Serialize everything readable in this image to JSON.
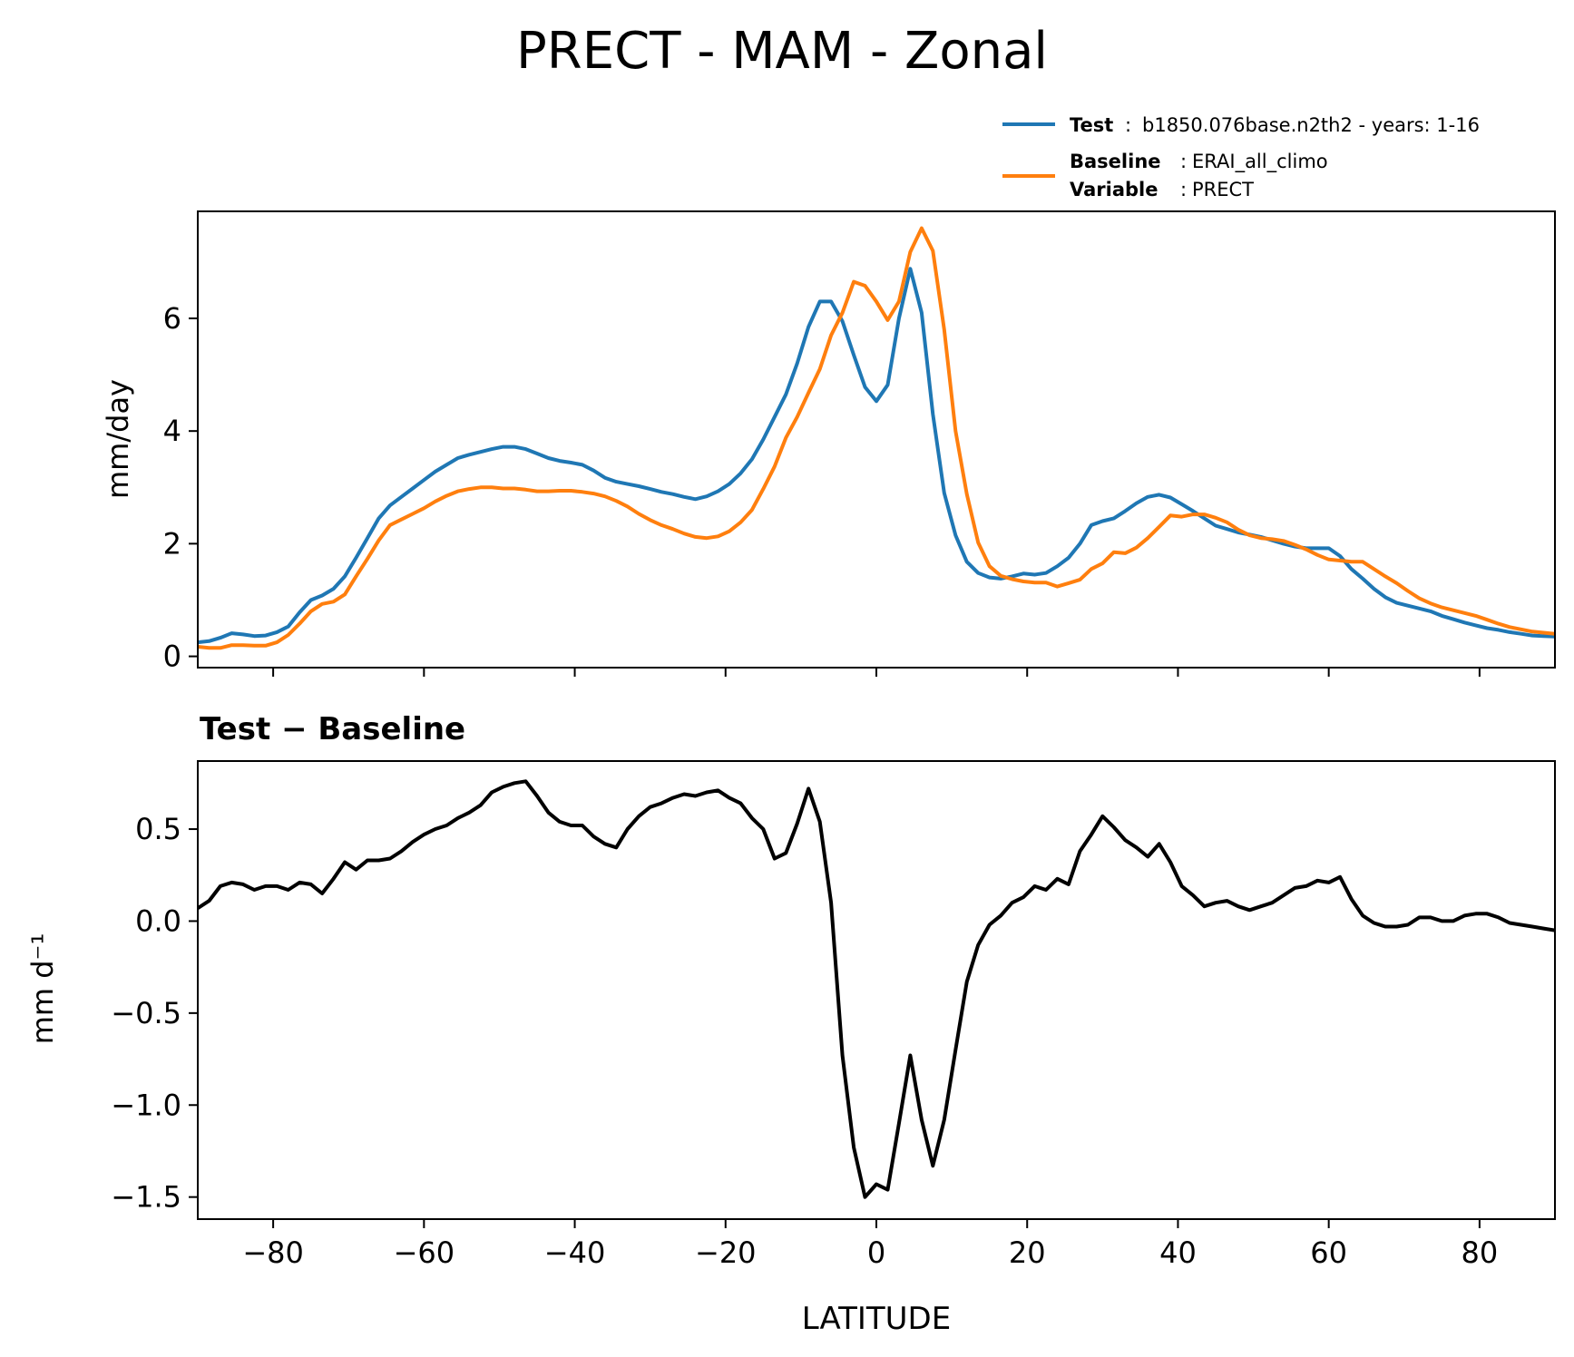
{
  "figure": {
    "title": "PRECT - MAM - Zonal",
    "legend": {
      "test_key": "Test",
      "test_value": "b1850.076base.n2th2 - years: 1-16",
      "baseline_key": "Baseline",
      "baseline_value": "ERAI_all_climo",
      "variable_key": "Variable",
      "variable_value": "PRECT"
    },
    "xlabel": "LATITUDE"
  },
  "colors": {
    "test": "#1f77b4",
    "baseline": "#ff7f0e",
    "diff": "#000000"
  },
  "chart_data": [
    {
      "type": "line",
      "title": "",
      "xlabel": "",
      "ylabel": "mm/day",
      "xlim": [
        -90,
        90
      ],
      "ylim": [
        -0.2,
        7.9
      ],
      "xticks": [
        -80,
        -60,
        -40,
        -20,
        0,
        20,
        40,
        60,
        80
      ],
      "yticks": [
        0,
        2,
        4,
        6
      ],
      "ytick_labels": [
        "0",
        "2",
        "4",
        "6"
      ],
      "legend_placement": "above, top-right",
      "series": [
        {
          "name": "Test: b1850.076base.n2th2 - years: 1-16",
          "color": "#1f77b4",
          "x": [
            -90,
            -88.5,
            -87,
            -85.5,
            -84,
            -82.5,
            -81,
            -79.5,
            -78,
            -76.5,
            -75,
            -73.5,
            -72,
            -70.5,
            -69,
            -67.5,
            -66,
            -64.5,
            -63,
            -61.5,
            -60,
            -58.5,
            -57,
            -55.5,
            -54,
            -52.5,
            -51,
            -49.5,
            -48,
            -46.5,
            -45,
            -43.5,
            -42,
            -40.5,
            -39,
            -37.5,
            -36,
            -34.5,
            -33,
            -31.5,
            -30,
            -28.5,
            -27,
            -25.5,
            -24,
            -22.5,
            -21,
            -19.5,
            -18,
            -16.5,
            -15,
            -13.5,
            -12,
            -10.5,
            -9,
            -7.5,
            -6,
            -4.5,
            -3,
            -1.5,
            0,
            1.5,
            3,
            4.5,
            6,
            7.5,
            9,
            10.5,
            12,
            13.5,
            15,
            16.5,
            18,
            19.5,
            21,
            22.5,
            24,
            25.5,
            27,
            28.5,
            30,
            31.5,
            33,
            34.5,
            36,
            37.5,
            39,
            40.5,
            42,
            43.5,
            45,
            46.5,
            48,
            49.5,
            51,
            52.5,
            54,
            55.5,
            57,
            58.5,
            60,
            61.5,
            63,
            64.5,
            66,
            67.5,
            69,
            70.5,
            72,
            73.5,
            75,
            76.5,
            78,
            79.5,
            81,
            82.5,
            84,
            85.5,
            87,
            88.5,
            90
          ],
          "y": [
            0.25,
            0.27,
            0.33,
            0.41,
            0.39,
            0.36,
            0.37,
            0.43,
            0.53,
            0.78,
            1.0,
            1.08,
            1.2,
            1.42,
            1.75,
            2.1,
            2.45,
            2.68,
            2.83,
            2.98,
            3.13,
            3.28,
            3.4,
            3.52,
            3.58,
            3.63,
            3.68,
            3.72,
            3.72,
            3.68,
            3.6,
            3.52,
            3.47,
            3.44,
            3.4,
            3.3,
            3.17,
            3.1,
            3.06,
            3.02,
            2.97,
            2.92,
            2.88,
            2.83,
            2.79,
            2.84,
            2.93,
            3.06,
            3.25,
            3.5,
            3.85,
            4.25,
            4.65,
            5.2,
            5.85,
            6.3,
            6.3,
            5.95,
            5.35,
            4.78,
            4.53,
            4.82,
            6.0,
            6.88,
            6.1,
            4.3,
            2.9,
            2.15,
            1.68,
            1.48,
            1.4,
            1.38,
            1.42,
            1.47,
            1.45,
            1.48,
            1.6,
            1.75,
            2.0,
            2.33,
            2.4,
            2.45,
            2.58,
            2.72,
            2.83,
            2.87,
            2.82,
            2.7,
            2.58,
            2.45,
            2.32,
            2.26,
            2.2,
            2.16,
            2.12,
            2.06,
            2.0,
            1.95,
            1.92,
            1.92,
            1.92,
            1.78,
            1.55,
            1.38,
            1.2,
            1.05,
            0.95,
            0.9,
            0.85,
            0.8,
            0.72,
            0.66,
            0.6,
            0.55,
            0.5,
            0.47,
            0.43,
            0.4,
            0.37,
            0.36,
            0.35
          ]
        },
        {
          "name": "Baseline: ERAI_all_climo",
          "color": "#ff7f0e",
          "x": [
            -90,
            -88.5,
            -87,
            -85.5,
            -84,
            -82.5,
            -81,
            -79.5,
            -78,
            -76.5,
            -75,
            -73.5,
            -72,
            -70.5,
            -69,
            -67.5,
            -66,
            -64.5,
            -63,
            -61.5,
            -60,
            -58.5,
            -57,
            -55.5,
            -54,
            -52.5,
            -51,
            -49.5,
            -48,
            -46.5,
            -45,
            -43.5,
            -42,
            -40.5,
            -39,
            -37.5,
            -36,
            -34.5,
            -33,
            -31.5,
            -30,
            -28.5,
            -27,
            -25.5,
            -24,
            -22.5,
            -21,
            -19.5,
            -18,
            -16.5,
            -15,
            -13.5,
            -12,
            -10.5,
            -9,
            -7.5,
            -6,
            -4.5,
            -3,
            -1.5,
            0,
            1.5,
            3,
            4.5,
            6,
            7.5,
            9,
            10.5,
            12,
            13.5,
            15,
            16.5,
            18,
            19.5,
            21,
            22.5,
            24,
            25.5,
            27,
            28.5,
            30,
            31.5,
            33,
            34.5,
            36,
            37.5,
            39,
            40.5,
            42,
            43.5,
            45,
            46.5,
            48,
            49.5,
            51,
            52.5,
            54,
            55.5,
            57,
            58.5,
            60,
            61.5,
            63,
            64.5,
            66,
            67.5,
            69,
            70.5,
            72,
            73.5,
            75,
            76.5,
            78,
            79.5,
            81,
            82.5,
            84,
            85.5,
            87,
            88.5,
            90
          ],
          "y": [
            0.17,
            0.15,
            0.15,
            0.2,
            0.2,
            0.19,
            0.19,
            0.25,
            0.38,
            0.58,
            0.8,
            0.93,
            0.97,
            1.1,
            1.42,
            1.73,
            2.06,
            2.33,
            2.43,
            2.53,
            2.63,
            2.75,
            2.85,
            2.93,
            2.97,
            3.0,
            3.0,
            2.98,
            2.98,
            2.96,
            2.93,
            2.93,
            2.94,
            2.94,
            2.92,
            2.89,
            2.84,
            2.76,
            2.66,
            2.53,
            2.42,
            2.33,
            2.26,
            2.18,
            2.12,
            2.1,
            2.13,
            2.22,
            2.38,
            2.6,
            2.97,
            3.37,
            3.88,
            4.25,
            4.68,
            5.1,
            5.7,
            6.1,
            6.65,
            6.58,
            6.3,
            5.97,
            6.3,
            7.18,
            7.6,
            7.2,
            5.8,
            4.0,
            2.88,
            2.02,
            1.6,
            1.43,
            1.37,
            1.33,
            1.31,
            1.31,
            1.24,
            1.3,
            1.36,
            1.55,
            1.65,
            1.85,
            1.83,
            1.93,
            2.1,
            2.3,
            2.5,
            2.48,
            2.52,
            2.52,
            2.46,
            2.38,
            2.25,
            2.15,
            2.1,
            2.08,
            2.05,
            1.98,
            1.9,
            1.8,
            1.72,
            1.7,
            1.68,
            1.68,
            1.55,
            1.42,
            1.3,
            1.16,
            1.03,
            0.94,
            0.87,
            0.82,
            0.77,
            0.72,
            0.65,
            0.58,
            0.52,
            0.48,
            0.44,
            0.42,
            0.4
          ]
        }
      ]
    },
    {
      "type": "line",
      "title": "Test − Baseline",
      "xlabel": "LATITUDE",
      "ylabel": "mm d⁻¹",
      "xlim": [
        -90,
        90
      ],
      "ylim": [
        -1.62,
        0.87
      ],
      "xticks": [
        -80,
        -60,
        -40,
        -20,
        0,
        20,
        40,
        60,
        80
      ],
      "xtick_labels": [
        "−80",
        "−60",
        "−40",
        "−20",
        "0",
        "20",
        "40",
        "60",
        "80"
      ],
      "yticks": [
        0.5,
        0.0,
        -0.5,
        -1.0,
        -1.5
      ],
      "ytick_labels": [
        "0.5",
        "0.0",
        "−0.5",
        "−1.0",
        "−1.5"
      ],
      "series": [
        {
          "name": "Test − Baseline",
          "color": "#000000",
          "x": [
            -90,
            -88.5,
            -87,
            -85.5,
            -84,
            -82.5,
            -81,
            -79.5,
            -78,
            -76.5,
            -75,
            -73.5,
            -72,
            -70.5,
            -69,
            -67.5,
            -66,
            -64.5,
            -63,
            -61.5,
            -60,
            -58.5,
            -57,
            -55.5,
            -54,
            -52.5,
            -51,
            -49.5,
            -48,
            -46.5,
            -45,
            -43.5,
            -42,
            -40.5,
            -39,
            -37.5,
            -36,
            -34.5,
            -33,
            -31.5,
            -30,
            -28.5,
            -27,
            -25.5,
            -24,
            -22.5,
            -21,
            -19.5,
            -18,
            -16.5,
            -15,
            -13.5,
            -12,
            -10.5,
            -9,
            -7.5,
            -6,
            -4.5,
            -3,
            -1.5,
            0,
            1.5,
            3,
            4.5,
            6,
            7.5,
            9,
            10.5,
            12,
            13.5,
            15,
            16.5,
            18,
            19.5,
            21,
            22.5,
            24,
            25.5,
            27,
            28.5,
            30,
            31.5,
            33,
            34.5,
            36,
            37.5,
            39,
            40.5,
            42,
            43.5,
            45,
            46.5,
            48,
            49.5,
            51,
            52.5,
            54,
            55.5,
            57,
            58.5,
            60,
            61.5,
            63,
            64.5,
            66,
            67.5,
            69,
            70.5,
            72,
            73.5,
            75,
            76.5,
            78,
            79.5,
            81,
            82.5,
            84,
            85.5,
            87,
            88.5,
            90
          ],
          "y": [
            0.07,
            0.11,
            0.19,
            0.21,
            0.2,
            0.17,
            0.19,
            0.19,
            0.17,
            0.21,
            0.2,
            0.15,
            0.23,
            0.32,
            0.28,
            0.33,
            0.33,
            0.34,
            0.38,
            0.43,
            0.47,
            0.5,
            0.52,
            0.56,
            0.59,
            0.63,
            0.7,
            0.73,
            0.75,
            0.76,
            0.68,
            0.59,
            0.54,
            0.52,
            0.52,
            0.46,
            0.42,
            0.4,
            0.5,
            0.57,
            0.62,
            0.64,
            0.67,
            0.69,
            0.68,
            0.7,
            0.71,
            0.67,
            0.64,
            0.56,
            0.5,
            0.34,
            0.37,
            0.53,
            0.72,
            0.54,
            0.1,
            -0.73,
            -1.23,
            -1.5,
            -1.43,
            -1.46,
            -1.1,
            -0.73,
            -1.08,
            -1.33,
            -1.08,
            -0.7,
            -0.33,
            -0.13,
            -0.02,
            0.03,
            0.1,
            0.13,
            0.19,
            0.17,
            0.23,
            0.2,
            0.38,
            0.47,
            0.57,
            0.51,
            0.44,
            0.4,
            0.35,
            0.42,
            0.32,
            0.19,
            0.14,
            0.08,
            0.1,
            0.11,
            0.08,
            0.06,
            0.08,
            0.1,
            0.14,
            0.18,
            0.19,
            0.22,
            0.21,
            0.24,
            0.12,
            0.03,
            -0.01,
            -0.03,
            -0.03,
            -0.02,
            0.02,
            0.02,
            0.0,
            0.0,
            0.03,
            0.04,
            0.04,
            0.02,
            -0.01,
            -0.02,
            -0.03,
            -0.04,
            -0.05
          ]
        }
      ]
    }
  ]
}
